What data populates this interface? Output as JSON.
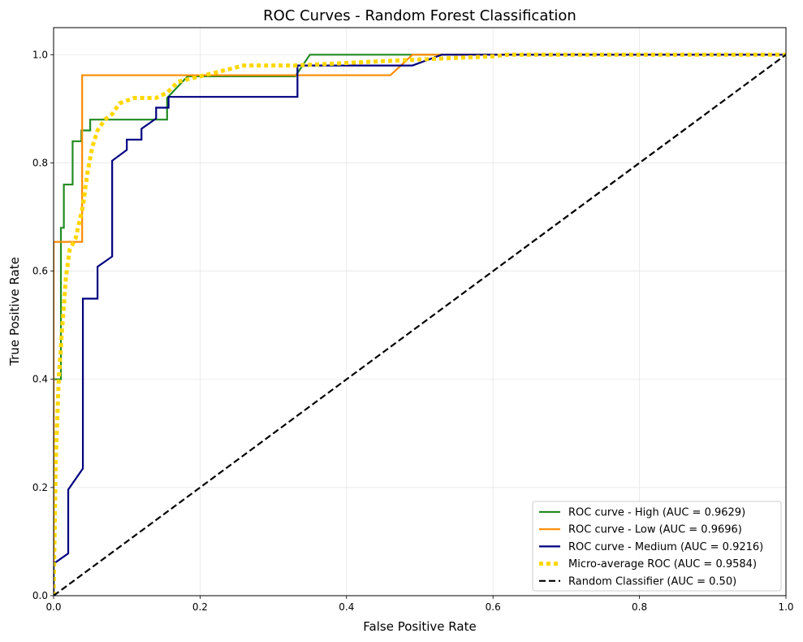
{
  "chart_data": {
    "type": "line",
    "title": "ROC Curves - Random Forest Classification",
    "xlabel": "False Positive Rate",
    "ylabel": "True Positive Rate",
    "xlim": [
      0.0,
      1.0
    ],
    "ylim": [
      0.0,
      1.05
    ],
    "xticks": [
      0.0,
      0.2,
      0.4,
      0.6,
      0.8,
      1.0
    ],
    "yticks": [
      0.0,
      0.2,
      0.4,
      0.6,
      0.8,
      1.0
    ],
    "xtick_labels": [
      "0.0",
      "0.2",
      "0.4",
      "0.6",
      "0.8",
      "1.0"
    ],
    "ytick_labels": [
      "0.0",
      "0.2",
      "0.4",
      "0.6",
      "0.8",
      "1.0"
    ],
    "grid": true,
    "legend_position": "bottom-right",
    "series": [
      {
        "name": "ROC curve - High (AUC = 0.9629)",
        "color": "#228b22",
        "style": "solid",
        "x": [
          0.0,
          0.0,
          0.01,
          0.01,
          0.014,
          0.014,
          0.026,
          0.026,
          0.038,
          0.038,
          0.05,
          0.05,
          0.155,
          0.155,
          0.183,
          0.33,
          0.35,
          1.0
        ],
        "y": [
          0.0,
          0.4,
          0.4,
          0.68,
          0.68,
          0.76,
          0.76,
          0.84,
          0.84,
          0.86,
          0.86,
          0.88,
          0.88,
          0.92,
          0.96,
          0.96,
          1.0,
          1.0
        ]
      },
      {
        "name": "ROC curve - Low (AUC = 0.9696)",
        "color": "#ff8c00",
        "style": "solid",
        "x": [
          0.0,
          0.0,
          0.039,
          0.039,
          0.46,
          0.49,
          1.0
        ],
        "y": [
          0.0,
          0.654,
          0.654,
          0.962,
          0.962,
          1.0,
          1.0
        ]
      },
      {
        "name": "ROC curve - Medium (AUC = 0.9216)",
        "color": "#000080",
        "style": "solid",
        "x": [
          0.0,
          0.0,
          0.02,
          0.02,
          0.04,
          0.04,
          0.06,
          0.06,
          0.08,
          0.08,
          0.1,
          0.1,
          0.12,
          0.12,
          0.14,
          0.14,
          0.157,
          0.157,
          0.333,
          0.333,
          0.49,
          0.53,
          1.0
        ],
        "y": [
          0.0,
          0.059,
          0.078,
          0.196,
          0.235,
          0.549,
          0.549,
          0.608,
          0.627,
          0.804,
          0.824,
          0.843,
          0.843,
          0.863,
          0.882,
          0.902,
          0.902,
          0.922,
          0.922,
          0.98,
          0.98,
          1.0,
          1.0
        ]
      },
      {
        "name": "Micro-average ROC (AUC = 0.9584)",
        "color": "#ffd700",
        "style": "dotted",
        "x": [
          0.0,
          0.003,
          0.007,
          0.012,
          0.017,
          0.022,
          0.03,
          0.04,
          0.046,
          0.053,
          0.06,
          0.07,
          0.08,
          0.09,
          0.11,
          0.125,
          0.14,
          0.155,
          0.17,
          0.2,
          0.26,
          0.33,
          0.48,
          0.6,
          0.62,
          1.0
        ],
        "y": [
          0.0,
          0.25,
          0.4,
          0.5,
          0.59,
          0.64,
          0.66,
          0.72,
          0.78,
          0.83,
          0.86,
          0.88,
          0.89,
          0.91,
          0.92,
          0.92,
          0.92,
          0.93,
          0.95,
          0.96,
          0.98,
          0.98,
          0.99,
          0.997,
          1.0,
          1.0
        ]
      },
      {
        "name": "Random Classifier (AUC = 0.50)",
        "color": "#000000",
        "style": "dashed",
        "x": [
          0.0,
          1.0
        ],
        "y": [
          0.0,
          1.0
        ]
      }
    ]
  }
}
